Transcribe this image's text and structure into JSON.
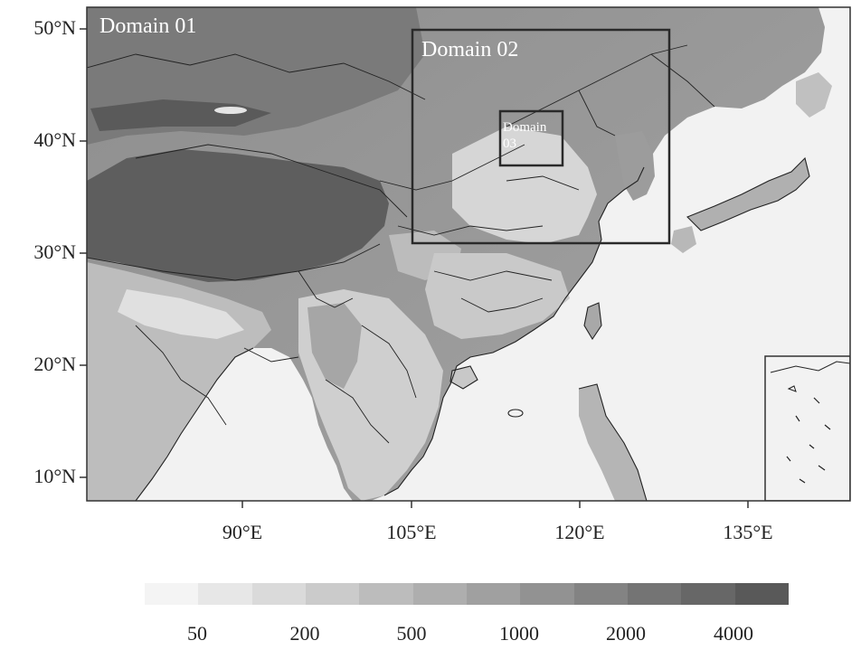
{
  "map": {
    "domains": [
      {
        "id": "d01",
        "label": "Domain 01"
      },
      {
        "id": "d02",
        "label": "Domain 02"
      },
      {
        "id": "d03",
        "label_line1": "Domain",
        "label_line2": "03"
      }
    ],
    "lat_ticks": [
      "50°N",
      "40°N",
      "30°N",
      "20°N",
      "10°N"
    ],
    "lon_ticks": [
      "90°E",
      "105°E",
      "120°E",
      "135°E"
    ],
    "colors": {
      "frame": "#333333",
      "domain_box": "#2a2a2a",
      "ocean": "#f2f2f2",
      "border_lines": "#222222"
    }
  },
  "legend": {
    "labels": [
      "50",
      "200",
      "500",
      "1000",
      "2000",
      "4000"
    ],
    "colors": [
      "#f4f4f4",
      "#e7e7e7",
      "#dadada",
      "#cbcbcb",
      "#bcbcbc",
      "#aeaeae",
      "#a0a0a0",
      "#929292",
      "#838383",
      "#747474",
      "#676767",
      "#595959"
    ]
  }
}
